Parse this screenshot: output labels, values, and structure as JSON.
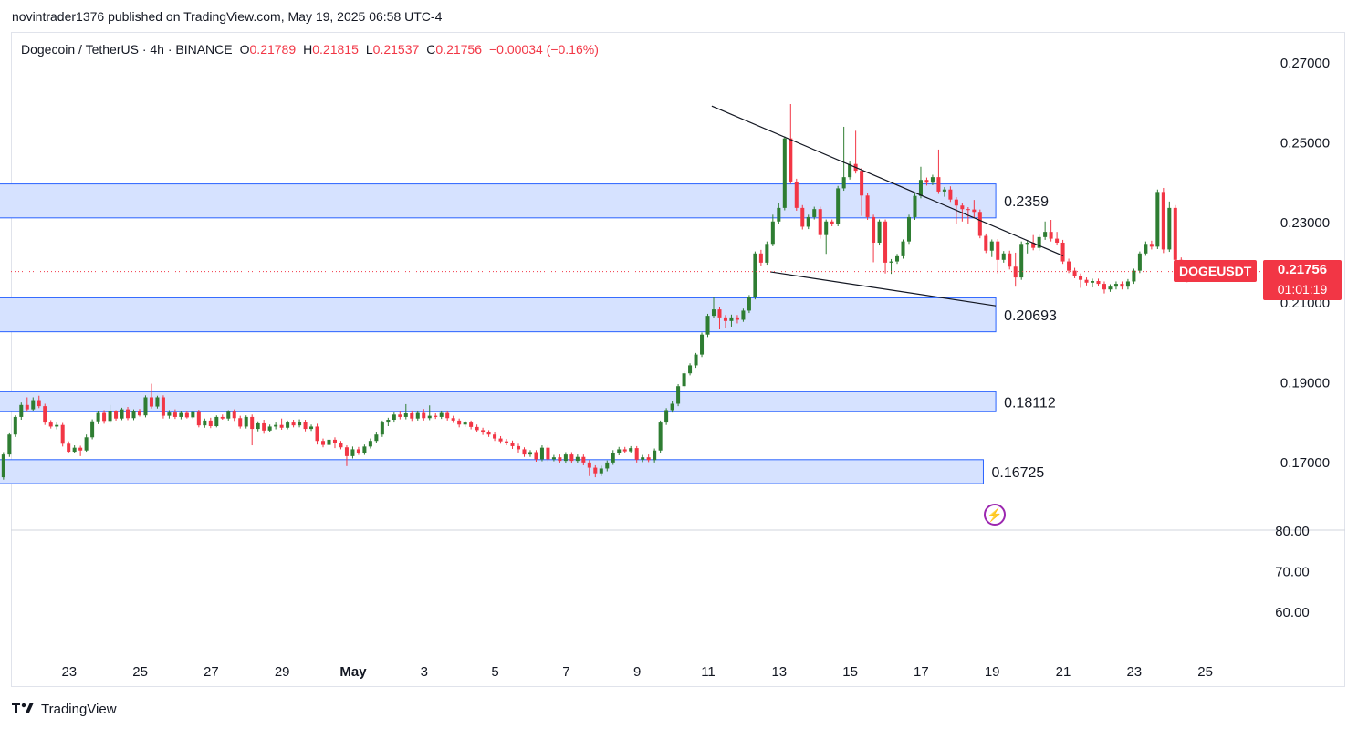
{
  "header": {
    "published_text": "novintrader1376 published on TradingView.com, May 19, 2025 06:58 UTC-4"
  },
  "legend": {
    "symbol": "Dogecoin / TetherUS · 4h · BINANCE",
    "o_label": "O",
    "o_value": "0.21789",
    "h_label": "H",
    "h_value": "0.21815",
    "l_label": "L",
    "l_value": "0.21537",
    "c_label": "C",
    "c_value": "0.21756",
    "change": "−0.00034 (−0.16%)"
  },
  "price_badge": {
    "symbol": "DOGEUSDT",
    "price": "0.21756",
    "countdown": "01:01:19"
  },
  "footer": {
    "brand": "TradingView",
    "logo": "tradingview-logo-icon"
  },
  "colors": {
    "up": "#2e7d32",
    "down": "#f23645",
    "zone_fill": "#d6e2ff",
    "zone_border": "#2962ff",
    "badge": "#f23645"
  },
  "chart_data": {
    "type": "candlestick",
    "title": "Dogecoin / TetherUS · 4h · BINANCE",
    "last_price": 0.21756,
    "y_ticks": [
      "0.27000",
      "0.25000",
      "0.23000",
      "0.21000",
      "0.19000",
      "0.17000"
    ],
    "y_tick_values": [
      0.27,
      0.25,
      0.23,
      0.21,
      0.19,
      0.17
    ],
    "ylim": [
      0.1585,
      0.2725
    ],
    "lower_pane_ticks": [
      "80.00",
      "70.00",
      "60.00"
    ],
    "lower_pane_values": [
      80,
      70,
      60
    ],
    "x_ticks": [
      "23",
      "25",
      "27",
      "29",
      "May",
      "3",
      "5",
      "7",
      "9",
      "11",
      "13",
      "15",
      "17",
      "19",
      "21",
      "23",
      "25"
    ],
    "x_tick_days": [
      -8,
      -6,
      -4,
      -2,
      0,
      2,
      4,
      6,
      8,
      10,
      12,
      14,
      16,
      18,
      20,
      22,
      24
    ],
    "zones": [
      {
        "label": "0.2359",
        "top": 0.2395,
        "bottom": 0.231,
        "from_day": -10.9,
        "to_day": 18.1
      },
      {
        "label": "0.20693",
        "top": 0.211,
        "bottom": 0.2025,
        "from_day": -10.9,
        "to_day": 18.1
      },
      {
        "label": "0.18112",
        "top": 0.1875,
        "bottom": 0.1825,
        "from_day": -10.9,
        "to_day": 18.1
      },
      {
        "label": "0.16725",
        "top": 0.1705,
        "bottom": 0.1645,
        "from_day": -10.9,
        "to_day": 17.75
      }
    ],
    "trendlines": [
      {
        "name": "upper",
        "points": [
          [
            10.1,
            0.259
          ],
          [
            20.0,
            0.2215
          ]
        ]
      },
      {
        "name": "lower",
        "points": [
          [
            11.75,
            0.2175
          ],
          [
            18.1,
            0.209
          ]
        ]
      }
    ],
    "candles_start_day": -10.85,
    "candle_step_days": 0.1667,
    "candles": [
      [
        0.1631,
        0.1622,
        0.1639,
        0.1598
      ],
      [
        0.1622,
        0.1616,
        0.1628,
        0.1592
      ],
      [
        0.1616,
        0.1611,
        0.1625,
        0.1601
      ],
      [
        0.1611,
        0.1628,
        0.1632,
        0.1605
      ],
      [
        0.1628,
        0.1642,
        0.1648,
        0.1623
      ],
      [
        0.1642,
        0.1661,
        0.1667,
        0.1637
      ],
      [
        0.1661,
        0.1718,
        0.1724,
        0.1655
      ],
      [
        0.1718,
        0.1768,
        0.1771,
        0.1712
      ],
      [
        0.1768,
        0.1812,
        0.1816,
        0.1762
      ],
      [
        0.1812,
        0.1842,
        0.1848,
        0.1805
      ],
      [
        0.1842,
        0.1831,
        0.1861,
        0.1825
      ],
      [
        0.1831,
        0.1854,
        0.1861,
        0.1826
      ],
      [
        0.1854,
        0.1839,
        0.1865,
        0.1834
      ],
      [
        0.1839,
        0.1798,
        0.1845,
        0.1792
      ],
      [
        0.1798,
        0.1788,
        0.1804,
        0.1783
      ],
      [
        0.1788,
        0.1792,
        0.1798,
        0.1781
      ],
      [
        0.1792,
        0.1745,
        0.1797,
        0.1738
      ],
      [
        0.1745,
        0.1725,
        0.1751,
        0.1721
      ],
      [
        0.1725,
        0.1735,
        0.1741,
        0.1721
      ],
      [
        0.1735,
        0.1728,
        0.174,
        0.1714
      ],
      [
        0.1728,
        0.1761,
        0.1768,
        0.1725
      ],
      [
        0.1761,
        0.1801,
        0.1806,
        0.1756
      ],
      [
        0.1801,
        0.1822,
        0.1826,
        0.1794
      ],
      [
        0.1822,
        0.1802,
        0.1829,
        0.1795
      ],
      [
        0.1802,
        0.1826,
        0.1842,
        0.1796
      ],
      [
        0.1826,
        0.1808,
        0.1829,
        0.1803
      ],
      [
        0.1808,
        0.1831,
        0.1835,
        0.1804
      ],
      [
        0.1831,
        0.1809,
        0.1837,
        0.1804
      ],
      [
        0.1809,
        0.1826,
        0.1831,
        0.1804
      ],
      [
        0.1826,
        0.1816,
        0.1832,
        0.1813
      ],
      [
        0.1816,
        0.1861,
        0.1866,
        0.1811
      ],
      [
        0.1861,
        0.1838,
        0.1895,
        0.1833
      ],
      [
        0.1838,
        0.1861,
        0.1865,
        0.1833
      ],
      [
        0.1861,
        0.1815,
        0.1866,
        0.1808
      ],
      [
        0.1815,
        0.1823,
        0.1829,
        0.1808
      ],
      [
        0.1823,
        0.1812,
        0.1831,
        0.1807
      ],
      [
        0.1812,
        0.1822,
        0.1826,
        0.1806
      ],
      [
        0.1822,
        0.1811,
        0.1827,
        0.1808
      ],
      [
        0.1811,
        0.1824,
        0.1828,
        0.1807
      ],
      [
        0.1824,
        0.1791,
        0.183,
        0.1786
      ],
      [
        0.1791,
        0.1803,
        0.1808,
        0.1785
      ],
      [
        0.1803,
        0.1789,
        0.181,
        0.1784
      ],
      [
        0.1789,
        0.1812,
        0.1816,
        0.1786
      ],
      [
        0.1812,
        0.1808,
        0.1818,
        0.1805
      ],
      [
        0.1808,
        0.1825,
        0.1829,
        0.1803
      ],
      [
        0.1825,
        0.1809,
        0.1831,
        0.1802
      ],
      [
        0.1809,
        0.1788,
        0.1815,
        0.1783
      ],
      [
        0.1788,
        0.1812,
        0.1816,
        0.1783
      ],
      [
        0.1812,
        0.1782,
        0.1818,
        0.1741
      ],
      [
        0.1782,
        0.1796,
        0.1801,
        0.1776
      ],
      [
        0.1796,
        0.1778,
        0.1805,
        0.177
      ],
      [
        0.1778,
        0.1788,
        0.1793,
        0.1775
      ],
      [
        0.1788,
        0.1792,
        0.1798,
        0.1781
      ],
      [
        0.1792,
        0.1785,
        0.1808,
        0.178
      ],
      [
        0.1785,
        0.1798,
        0.1803,
        0.1781
      ],
      [
        0.1798,
        0.1791,
        0.1805,
        0.1786
      ],
      [
        0.1791,
        0.1799,
        0.1806,
        0.1786
      ],
      [
        0.1799,
        0.1782,
        0.1805,
        0.1776
      ],
      [
        0.1782,
        0.1788,
        0.1793,
        0.1777
      ],
      [
        0.1788,
        0.1752,
        0.1795,
        0.1743
      ],
      [
        0.1752,
        0.1742,
        0.1758,
        0.1736
      ],
      [
        0.1742,
        0.1755,
        0.1761,
        0.1731
      ],
      [
        0.1755,
        0.1747,
        0.1761,
        0.1734
      ],
      [
        0.1747,
        0.1736,
        0.1752,
        0.1731
      ],
      [
        0.1736,
        0.1714,
        0.1741,
        0.1689
      ],
      [
        0.1714,
        0.1731,
        0.1738,
        0.1708
      ],
      [
        0.1731,
        0.1722,
        0.1737,
        0.1717
      ],
      [
        0.1722,
        0.1738,
        0.1743,
        0.1717
      ],
      [
        0.1738,
        0.1752,
        0.1758,
        0.1733
      ],
      [
        0.1752,
        0.1768,
        0.1773,
        0.1747
      ],
      [
        0.1768,
        0.1798,
        0.1803,
        0.1762
      ],
      [
        0.1798,
        0.1805,
        0.181,
        0.1789
      ],
      [
        0.1805,
        0.1818,
        0.1823,
        0.1798
      ],
      [
        0.1818,
        0.1812,
        0.1825,
        0.1806
      ],
      [
        0.1812,
        0.1821,
        0.1844,
        0.1806
      ],
      [
        0.1821,
        0.1808,
        0.1828,
        0.1802
      ],
      [
        0.1808,
        0.1822,
        0.1828,
        0.1803
      ],
      [
        0.1822,
        0.1809,
        0.1832,
        0.1803
      ],
      [
        0.1809,
        0.1815,
        0.1841,
        0.1804
      ],
      [
        0.1815,
        0.1812,
        0.1821,
        0.1807
      ],
      [
        0.1812,
        0.1822,
        0.1828,
        0.1807
      ],
      [
        0.1822,
        0.1809,
        0.1828,
        0.1803
      ],
      [
        0.1809,
        0.1803,
        0.1815,
        0.1797
      ],
      [
        0.1803,
        0.1793,
        0.1808,
        0.1786
      ],
      [
        0.1793,
        0.1798,
        0.1803,
        0.1787
      ],
      [
        0.1798,
        0.1787,
        0.1803,
        0.1781
      ],
      [
        0.1787,
        0.1779,
        0.1793,
        0.1774
      ],
      [
        0.1779,
        0.1773,
        0.1785,
        0.1767
      ],
      [
        0.1773,
        0.1768,
        0.1779,
        0.1762
      ],
      [
        0.1768,
        0.1758,
        0.1774,
        0.1752
      ],
      [
        0.1758,
        0.1751,
        0.1764,
        0.1745
      ],
      [
        0.1751,
        0.1748,
        0.1757,
        0.1741
      ],
      [
        0.1748,
        0.1739,
        0.1753,
        0.1732
      ],
      [
        0.1739,
        0.1731,
        0.1745,
        0.1723
      ],
      [
        0.1731,
        0.1718,
        0.1736,
        0.1712
      ],
      [
        0.1718,
        0.1724,
        0.1729,
        0.1712
      ],
      [
        0.1724,
        0.1706,
        0.1729,
        0.17
      ],
      [
        0.1706,
        0.1735,
        0.1741,
        0.1701
      ],
      [
        0.1735,
        0.1706,
        0.1741,
        0.17
      ],
      [
        0.1706,
        0.1711,
        0.1717,
        0.1701
      ],
      [
        0.1711,
        0.1702,
        0.1718,
        0.1696
      ],
      [
        0.1702,
        0.1718,
        0.1724,
        0.1697
      ],
      [
        0.1718,
        0.1702,
        0.1724,
        0.1696
      ],
      [
        0.1702,
        0.1712,
        0.1718,
        0.1697
      ],
      [
        0.1712,
        0.1698,
        0.1718,
        0.1691
      ],
      [
        0.1698,
        0.1685,
        0.1704,
        0.1664
      ],
      [
        0.1685,
        0.1671,
        0.1691,
        0.1661
      ],
      [
        0.1671,
        0.1683,
        0.169,
        0.1664
      ],
      [
        0.1683,
        0.1698,
        0.1703,
        0.1676
      ],
      [
        0.1698,
        0.1722,
        0.1729,
        0.1692
      ],
      [
        0.1722,
        0.1731,
        0.1737,
        0.1716
      ],
      [
        0.1731,
        0.1726,
        0.1737,
        0.1721
      ],
      [
        0.1726,
        0.1734,
        0.1739,
        0.1723
      ],
      [
        0.1734,
        0.1705,
        0.1739,
        0.1698
      ],
      [
        0.1705,
        0.1711,
        0.1717,
        0.1699
      ],
      [
        0.1711,
        0.1704,
        0.1718,
        0.1699
      ],
      [
        0.1704,
        0.1728,
        0.1733,
        0.1698
      ],
      [
        0.1728,
        0.1798,
        0.1803,
        0.1722
      ],
      [
        0.1798,
        0.1829,
        0.1834,
        0.1792
      ],
      [
        0.1829,
        0.1845,
        0.1851,
        0.1823
      ],
      [
        0.1845,
        0.1889,
        0.1894,
        0.1839
      ],
      [
        0.1889,
        0.1921,
        0.1926,
        0.1884
      ],
      [
        0.1921,
        0.1941,
        0.1946,
        0.1916
      ],
      [
        0.1941,
        0.1968,
        0.1972,
        0.1935
      ],
      [
        0.1968,
        0.2018,
        0.2023,
        0.1962
      ],
      [
        0.2018,
        0.2065,
        0.207,
        0.2012
      ],
      [
        0.2065,
        0.2081,
        0.2112,
        0.2059
      ],
      [
        0.2081,
        0.2061,
        0.2088,
        0.2031
      ],
      [
        0.2061,
        0.2052,
        0.2067,
        0.2035
      ],
      [
        0.2052,
        0.2061,
        0.2068,
        0.2038
      ],
      [
        0.2061,
        0.2055,
        0.2067,
        0.2046
      ],
      [
        0.2055,
        0.2078,
        0.2083,
        0.205
      ],
      [
        0.2078,
        0.2112,
        0.2117,
        0.2072
      ],
      [
        0.2112,
        0.2221,
        0.2226,
        0.2106
      ],
      [
        0.2221,
        0.2198,
        0.223,
        0.219
      ],
      [
        0.2198,
        0.2245,
        0.2251,
        0.2193
      ],
      [
        0.2245,
        0.2301,
        0.2318,
        0.2239
      ],
      [
        0.2301,
        0.2335,
        0.2348,
        0.2295
      ],
      [
        0.2335,
        0.2509,
        0.2514,
        0.2329
      ],
      [
        0.2509,
        0.2401,
        0.2595,
        0.2395
      ],
      [
        0.2401,
        0.2335,
        0.2408,
        0.2328
      ],
      [
        0.2335,
        0.2288,
        0.2342,
        0.2281
      ],
      [
        0.2288,
        0.2312,
        0.2318,
        0.2282
      ],
      [
        0.2312,
        0.2332,
        0.2338,
        0.2306
      ],
      [
        0.2332,
        0.2267,
        0.2338,
        0.2258
      ],
      [
        0.2267,
        0.2301,
        0.2306,
        0.222
      ],
      [
        0.2301,
        0.2295,
        0.2306,
        0.2289
      ],
      [
        0.2295,
        0.2384,
        0.239,
        0.2289
      ],
      [
        0.2384,
        0.2412,
        0.2538,
        0.2378
      ],
      [
        0.2412,
        0.2445,
        0.2451,
        0.2406
      ],
      [
        0.2445,
        0.2428,
        0.2528,
        0.2421
      ],
      [
        0.2428,
        0.2366,
        0.2435,
        0.2315
      ],
      [
        0.2366,
        0.2312,
        0.2372,
        0.2305
      ],
      [
        0.2312,
        0.2248,
        0.2318,
        0.2199
      ],
      [
        0.2248,
        0.2301,
        0.2306,
        0.2241
      ],
      [
        0.2301,
        0.2198,
        0.2306,
        0.2171
      ],
      [
        0.2198,
        0.2201,
        0.2207,
        0.217
      ],
      [
        0.2201,
        0.2214,
        0.222,
        0.2195
      ],
      [
        0.2214,
        0.2251,
        0.2256,
        0.2208
      ],
      [
        0.2251,
        0.2312,
        0.2318,
        0.2245
      ],
      [
        0.2312,
        0.2365,
        0.2371,
        0.2305
      ],
      [
        0.2365,
        0.2405,
        0.2438,
        0.2359
      ],
      [
        0.2405,
        0.2398,
        0.2411,
        0.2391
      ],
      [
        0.2398,
        0.2412,
        0.2418,
        0.2392
      ],
      [
        0.2412,
        0.2376,
        0.2481,
        0.237
      ],
      [
        0.2376,
        0.2381,
        0.2387,
        0.2363
      ],
      [
        0.2381,
        0.2356,
        0.2389,
        0.235
      ],
      [
        0.2356,
        0.2341,
        0.2362,
        0.2295
      ],
      [
        0.2341,
        0.2332,
        0.2347,
        0.2301
      ],
      [
        0.2332,
        0.2331,
        0.2337,
        0.2296
      ],
      [
        0.2331,
        0.2325,
        0.2355,
        0.231
      ],
      [
        0.2325,
        0.2265,
        0.2331,
        0.2259
      ],
      [
        0.2265,
        0.2228,
        0.2271,
        0.2222
      ],
      [
        0.2228,
        0.2251,
        0.2256,
        0.2212
      ],
      [
        0.2251,
        0.2205,
        0.2257,
        0.2171
      ],
      [
        0.2205,
        0.2221,
        0.2227,
        0.2198
      ],
      [
        0.2221,
        0.2188,
        0.2228,
        0.2181
      ],
      [
        0.2188,
        0.2161,
        0.2223,
        0.2138
      ],
      [
        0.2161,
        0.2245,
        0.2251,
        0.2155
      ],
      [
        0.2245,
        0.2248,
        0.2254,
        0.2221
      ],
      [
        0.2248,
        0.2235,
        0.2267,
        0.2229
      ],
      [
        0.2235,
        0.2262,
        0.2268,
        0.2228
      ],
      [
        0.2262,
        0.2275,
        0.2301,
        0.2255
      ],
      [
        0.2275,
        0.2258,
        0.2305,
        0.2251
      ],
      [
        0.2258,
        0.2248,
        0.2275,
        0.2241
      ],
      [
        0.2248,
        0.2201,
        0.2255,
        0.2195
      ],
      [
        0.2201,
        0.2178,
        0.2208,
        0.2172
      ],
      [
        0.2178,
        0.2165,
        0.2185,
        0.2159
      ],
      [
        0.2165,
        0.2155,
        0.2171,
        0.2135
      ],
      [
        0.2155,
        0.2148,
        0.2161,
        0.2141
      ],
      [
        0.2148,
        0.2152,
        0.2158,
        0.2136
      ],
      [
        0.2152,
        0.2145,
        0.2158,
        0.2139
      ],
      [
        0.2145,
        0.2131,
        0.2151,
        0.2121
      ],
      [
        0.2131,
        0.2138,
        0.2144,
        0.2125
      ],
      [
        0.2138,
        0.2145,
        0.2151,
        0.2131
      ],
      [
        0.2145,
        0.2138,
        0.2151,
        0.2131
      ],
      [
        0.2138,
        0.2151,
        0.2157,
        0.2131
      ],
      [
        0.2151,
        0.2178,
        0.2183,
        0.2145
      ],
      [
        0.2178,
        0.2221,
        0.2226,
        0.2172
      ],
      [
        0.2221,
        0.2245,
        0.2251,
        0.2215
      ],
      [
        0.2245,
        0.2238,
        0.2253,
        0.2231
      ],
      [
        0.2238,
        0.2375,
        0.2381,
        0.2232
      ],
      [
        0.2375,
        0.2231,
        0.2385,
        0.2222
      ],
      [
        0.2231,
        0.2335,
        0.2351,
        0.2225
      ],
      [
        0.2335,
        0.2205,
        0.2342,
        0.2198
      ],
      [
        0.2205,
        0.2181,
        0.2211,
        0.2165
      ],
      [
        0.2181,
        0.2179,
        0.2187,
        0.2149
      ],
      [
        0.2179,
        0.21756,
        0.21815,
        0.21537
      ]
    ]
  }
}
